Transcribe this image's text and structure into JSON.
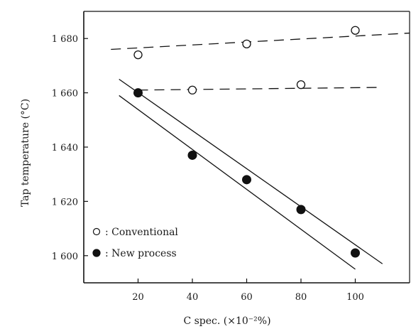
{
  "chart_data": {
    "type": "scatter",
    "xlabel": "C spec. (×10⁻²%)",
    "ylabel": "Tap temperature (°C)",
    "xlim": [
      0,
      120
    ],
    "ylim": [
      1590,
      1690
    ],
    "x_ticks": [
      20,
      40,
      60,
      80,
      100
    ],
    "x_tick_labels": [
      "20",
      "40",
      "60",
      "80",
      "100"
    ],
    "y_ticks": [
      1600,
      1620,
      1640,
      1660,
      1680
    ],
    "y_tick_labels": [
      "1 600",
      "1 620",
      "1 640",
      "1 660",
      "1 680"
    ],
    "grid": false,
    "legend_position": "bottom-left",
    "series": [
      {
        "name": "Conventional",
        "marker": "open-circle",
        "points": [
          {
            "x": 20,
            "y": 1674
          },
          {
            "x": 40,
            "y": 1661
          },
          {
            "x": 60,
            "y": 1678
          },
          {
            "x": 80,
            "y": 1663
          },
          {
            "x": 100,
            "y": 1683
          }
        ]
      },
      {
        "name": "New process",
        "marker": "filled-circle",
        "points": [
          {
            "x": 20,
            "y": 1660
          },
          {
            "x": 40,
            "y": 1637
          },
          {
            "x": 60,
            "y": 1628
          },
          {
            "x": 80,
            "y": 1617
          },
          {
            "x": 100,
            "y": 1601
          }
        ]
      }
    ],
    "lines": [
      {
        "style": "dashed",
        "x1": 10,
        "y1": 1676,
        "x2": 120,
        "y2": 1682
      },
      {
        "style": "dashed",
        "x1": 20,
        "y1": 1661,
        "x2": 110,
        "y2": 1662
      },
      {
        "style": "solid",
        "x1": 13,
        "y1": 1665,
        "x2": 110,
        "y2": 1597
      },
      {
        "style": "solid",
        "x1": 13,
        "y1": 1659,
        "x2": 100,
        "y2": 1595
      }
    ],
    "legend": [
      {
        "marker": "open-circle",
        "symbol": "○",
        "label": ": Conventional"
      },
      {
        "marker": "filled-circle",
        "symbol": "●",
        "label": ": New process"
      }
    ]
  }
}
